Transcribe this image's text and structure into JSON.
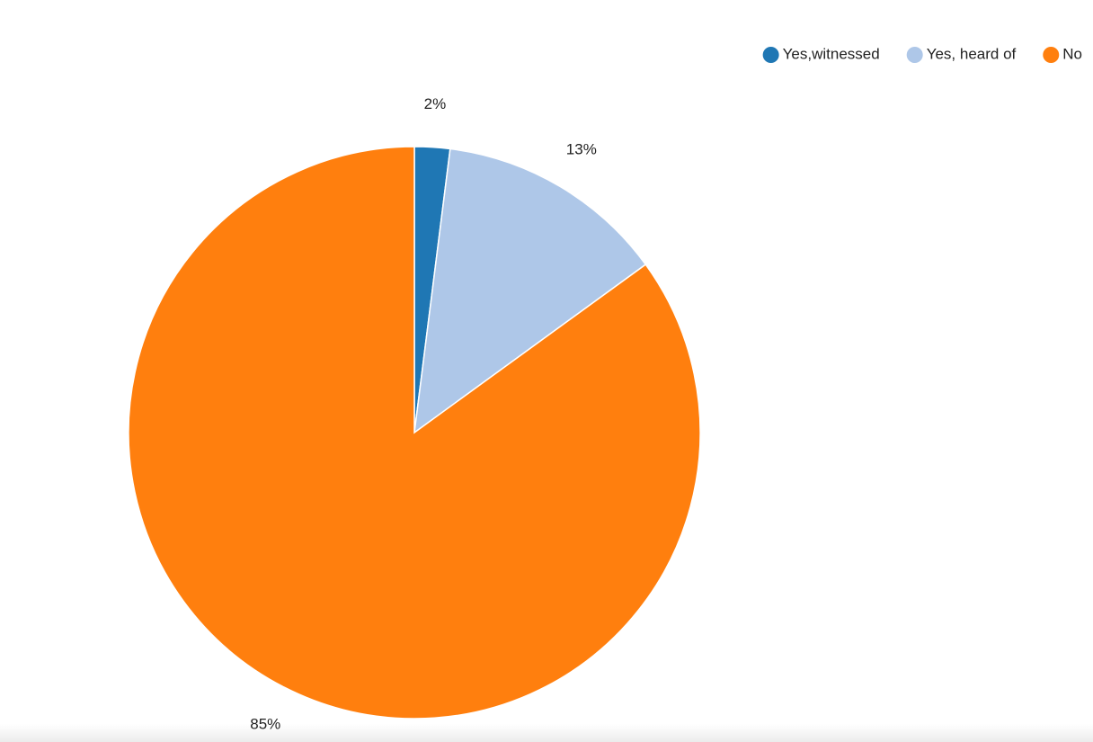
{
  "chart_data": {
    "type": "pie",
    "categories": [
      "Yes,witnessed",
      "Yes, heard of",
      "No"
    ],
    "values": [
      2,
      13,
      85
    ],
    "value_labels": [
      "2%",
      "13%",
      "85%"
    ],
    "colors": [
      "#1f77b4",
      "#aec7e8",
      "#ff7f0e"
    ],
    "legend": "top-right"
  }
}
